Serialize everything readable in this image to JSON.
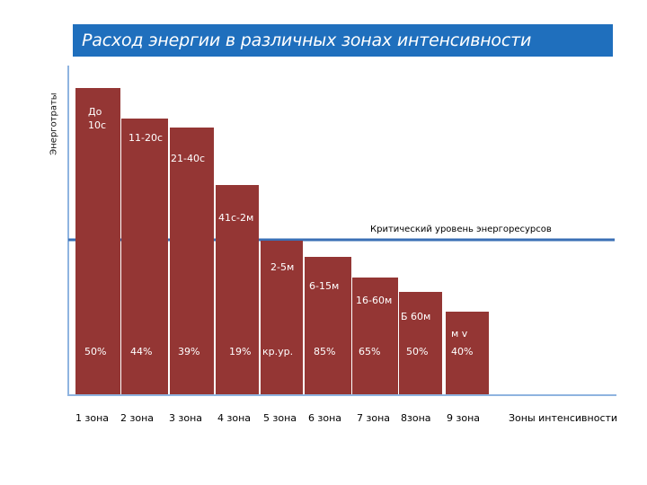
{
  "chart_data": {
    "type": "bar",
    "title": "Расход энергии в различных зонах интенсивности",
    "ylabel": "Энерготраты",
    "xlabel": "Зоны интенсивности",
    "threshold_label": "Критический уровень энергоресурсов",
    "threshold_value": 172,
    "ylim": [
      0,
      341
    ],
    "categories": [
      "1 зона",
      "2 зона",
      "3 зона",
      "4 зона",
      "5 зона",
      "6 зона",
      "7 зона",
      "8зона",
      "9 зона"
    ],
    "duration_labels": [
      "До\n10с",
      "11-20с",
      "21-40с",
      "41с-2м",
      "2-5м",
      "6-15м",
      "16-60м",
      "Б 60м",
      "м v"
    ],
    "percent_labels": [
      "50%",
      "44%",
      "39%",
      "19%",
      "кр.ур.",
      "85%",
      "65%",
      "50%",
      "40%"
    ],
    "values": [
      341,
      307,
      297,
      233,
      171,
      153,
      130,
      114,
      92
    ],
    "bar_color": "#943634",
    "line_color": "#3a6fb5",
    "axis_color": "#8fb4e0"
  }
}
